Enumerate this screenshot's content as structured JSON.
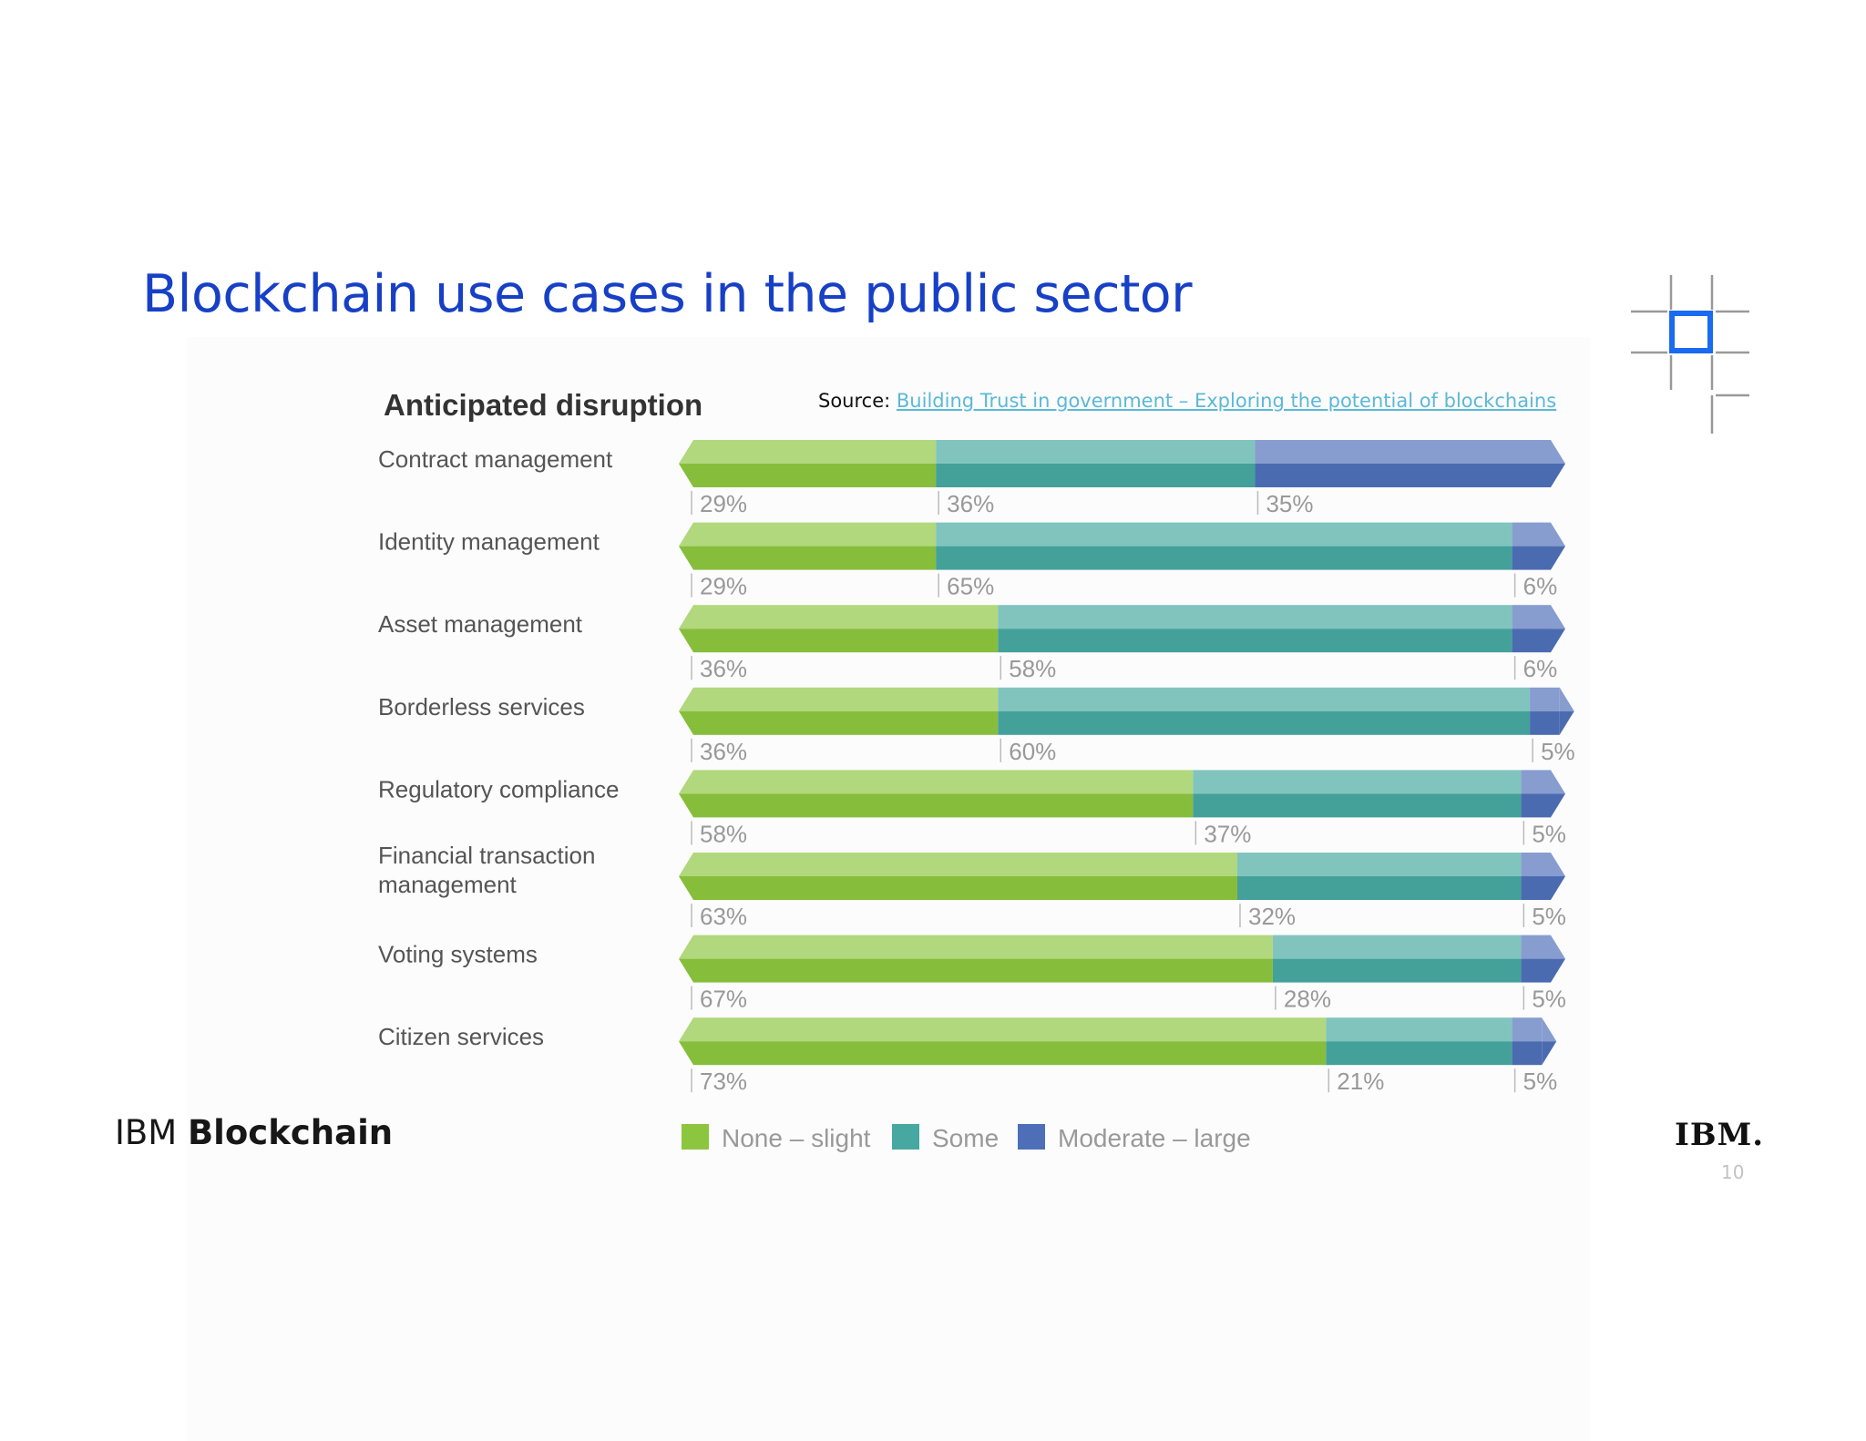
{
  "slide": {
    "title": "Blockchain use cases in the public sector",
    "brand_prefix": "IBM",
    "brand_name": "Blockchain",
    "logo_text": "IBM.",
    "page_number": "10"
  },
  "source": {
    "prefix": "Source:",
    "link_text": "Building Trust in government – Exploring the potential of blockchains"
  },
  "colors": {
    "title_blue": "#1740c6",
    "green": "#8cc63f",
    "teal": "#46a8a0",
    "blue": "#4e6fb8",
    "link": "#5bb8d8"
  },
  "icons": [
    "blockchain-grid-icon",
    "ibm-logo"
  ],
  "chart_data": {
    "type": "bar",
    "orientation": "horizontal",
    "stacked": true,
    "title": "Anticipated disruption",
    "categories": [
      "Contract management",
      "Identity management",
      "Asset management",
      "Borderless services",
      "Regulatory compliance",
      "Financial transaction management",
      "Voting systems",
      "Citizen services"
    ],
    "series": [
      {
        "name": "None – slight",
        "color": "#8cc63f",
        "values": [
          29,
          29,
          36,
          36,
          58,
          63,
          67,
          73
        ],
        "labels": [
          "29%",
          "29%",
          "36%",
          "36%",
          "58%",
          "63%",
          "67%",
          "73%"
        ]
      },
      {
        "name": "Some",
        "color": "#46a8a0",
        "values": [
          36,
          65,
          58,
          60,
          37,
          32,
          28,
          21
        ],
        "labels": [
          "36%",
          "65%",
          "58%",
          "60%",
          "37%",
          "32%",
          "28%",
          "21%"
        ]
      },
      {
        "name": "Moderate – large",
        "color": "#4e6fb8",
        "values": [
          35,
          6,
          6,
          5,
          5,
          5,
          5,
          5
        ],
        "labels": [
          "35%",
          "6%",
          "6%",
          "5%",
          "5%",
          "5%",
          "5%",
          "5%"
        ]
      }
    ],
    "xlim": [
      0,
      100
    ],
    "legend_position": "bottom",
    "grid": false
  }
}
